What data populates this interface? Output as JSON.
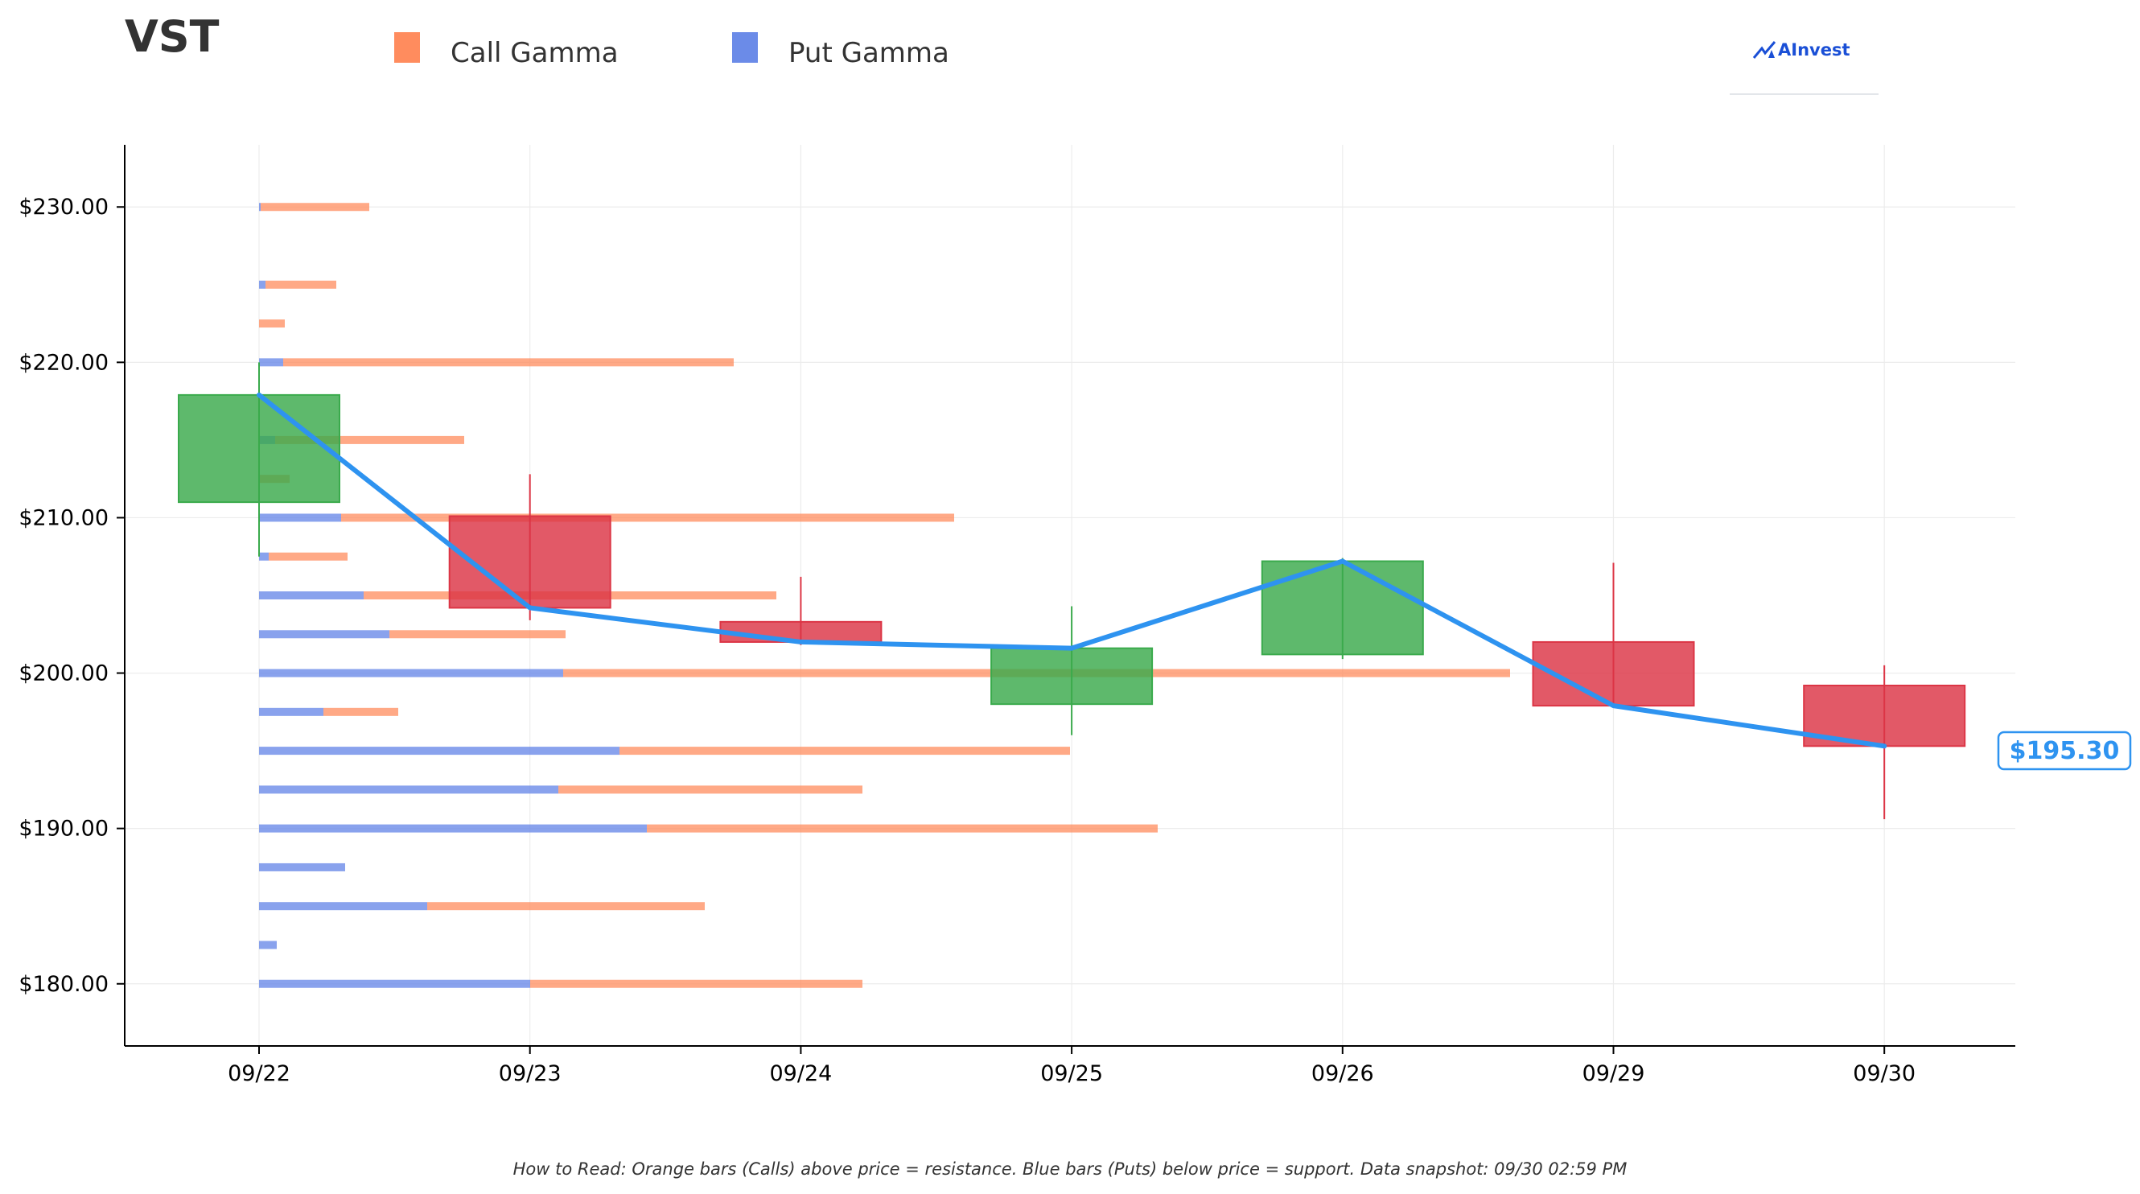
{
  "ticker": "VST",
  "brand": "AInvest",
  "footer": "How to Read: Orange bars (Calls) above price = resistance. Blue bars (Puts) below price = support. Data snapshot: 09/30 02:59 PM",
  "current_price_label": "$195.30",
  "colors": {
    "call": "#ff8c5e",
    "put": "#6b8be8",
    "up": "#3aaa4c",
    "down": "#dc3545",
    "line": "#2e93f0",
    "axis": "#000000",
    "grid": "#ececec",
    "text": "#333333"
  },
  "chart_data": {
    "type": "candlestick",
    "title": "VST",
    "legend": [
      {
        "name": "Call Gamma",
        "color": "#ff8c5e"
      },
      {
        "name": "Put Gamma",
        "color": "#6b8be8"
      }
    ],
    "legend_position": "top",
    "categories": [
      "09/22",
      "09/23",
      "09/24",
      "09/25",
      "09/26",
      "09/29",
      "09/30"
    ],
    "ylim": [
      176,
      234
    ],
    "yticks": [
      180,
      190,
      200,
      210,
      220,
      230
    ],
    "ytick_labels": [
      "$180.00",
      "$190.00",
      "$200.00",
      "$210.00",
      "$220.00",
      "$230.00"
    ],
    "grid": true,
    "candles": [
      {
        "date": "09/22",
        "open": 211.0,
        "close": 217.9,
        "high": 220.0,
        "low": 207.5
      },
      {
        "date": "09/23",
        "open": 210.1,
        "close": 204.2,
        "high": 212.8,
        "low": 203.4
      },
      {
        "date": "09/24",
        "open": 203.3,
        "close": 202.0,
        "high": 206.2,
        "low": 201.8
      },
      {
        "date": "09/25",
        "open": 198.0,
        "close": 201.6,
        "high": 204.3,
        "low": 196.0
      },
      {
        "date": "09/26",
        "open": 201.2,
        "close": 207.2,
        "high": 207.4,
        "low": 200.9
      },
      {
        "date": "09/29",
        "open": 202.0,
        "close": 197.9,
        "high": 207.1,
        "low": 197.8
      },
      {
        "date": "09/30",
        "open": 199.2,
        "close": 195.3,
        "high": 200.5,
        "low": 190.6
      }
    ],
    "close_line": [
      217.9,
      204.2,
      202.0,
      201.6,
      207.2,
      197.9,
      195.3
    ],
    "gamma_by_strike": [
      {
        "strike": 230.0,
        "put": 0.02,
        "call": 1.35
      },
      {
        "strike": 225.0,
        "put": 0.08,
        "call": 0.88
      },
      {
        "strike": 222.5,
        "put": 0.0,
        "call": 0.32
      },
      {
        "strike": 220.0,
        "put": 0.3,
        "call": 5.6
      },
      {
        "strike": 215.0,
        "put": 0.2,
        "call": 2.35
      },
      {
        "strike": 212.5,
        "put": 0.0,
        "call": 0.38
      },
      {
        "strike": 210.0,
        "put": 1.02,
        "call": 7.62
      },
      {
        "strike": 207.5,
        "put": 0.12,
        "call": 0.98
      },
      {
        "strike": 205.0,
        "put": 1.3,
        "call": 5.13
      },
      {
        "strike": 202.5,
        "put": 1.62,
        "call": 2.19
      },
      {
        "strike": 200.0,
        "put": 3.78,
        "call": 11.77
      },
      {
        "strike": 197.5,
        "put": 0.8,
        "call": 0.93
      },
      {
        "strike": 195.0,
        "put": 4.48,
        "call": 5.6
      },
      {
        "strike": 192.5,
        "put": 3.72,
        "call": 3.78
      },
      {
        "strike": 190.0,
        "put": 4.82,
        "call": 6.35
      },
      {
        "strike": 187.5,
        "put": 1.07,
        "call": 0.0
      },
      {
        "strike": 185.0,
        "put": 2.09,
        "call": 3.45
      },
      {
        "strike": 182.5,
        "put": 0.22,
        "call": 0.0
      },
      {
        "strike": 180.0,
        "put": 3.37,
        "call": 4.13
      }
    ]
  }
}
